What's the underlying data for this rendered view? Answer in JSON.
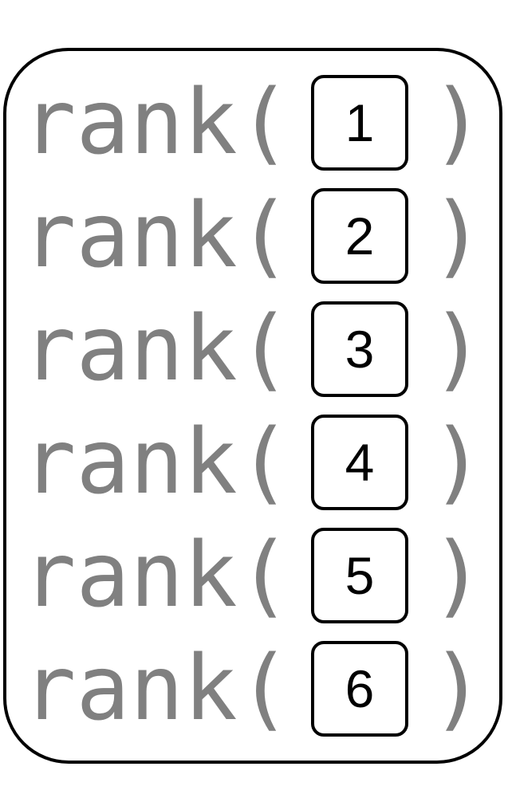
{
  "function_name": "rank(",
  "closing_paren": ")",
  "calls": [
    {
      "arg": "1"
    },
    {
      "arg": "2"
    },
    {
      "arg": "3"
    },
    {
      "arg": "4"
    },
    {
      "arg": "5"
    },
    {
      "arg": "6"
    }
  ],
  "colors": {
    "code_text": "#808080",
    "border": "#000000",
    "arg_text": "#000000",
    "background": "#ffffff"
  }
}
